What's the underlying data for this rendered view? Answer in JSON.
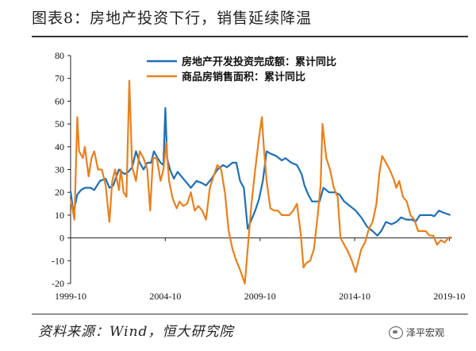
{
  "title": "图表8：房地产投资下行，销售延续降温",
  "source": "资料来源：Wind，恒大研究院",
  "watermark": "泽平宏观",
  "watermark_icon": "wechat-icon",
  "chart_data": {
    "type": "line",
    "ylim": [
      -20,
      80
    ],
    "yticks": [
      "80",
      "70",
      "60",
      "50",
      "40",
      "30",
      "20",
      "10",
      "0",
      "-10",
      "-20"
    ],
    "xlim": [
      1999.75,
      2019.9
    ],
    "xticks": [
      {
        "x": 1999.75,
        "label": "1999-10"
      },
      {
        "x": 2004.75,
        "label": "2004-10"
      },
      {
        "x": 2009.75,
        "label": "2009-10"
      },
      {
        "x": 2014.75,
        "label": "2014-10"
      },
      {
        "x": 2019.75,
        "label": "2019-10"
      }
    ],
    "legend_position": "top",
    "grid": false,
    "series": [
      {
        "name": "房地产开发投资完成额：累计同比",
        "color": "#1f6fb4",
        "points": [
          [
            1999.75,
            20.5
          ],
          [
            1999.9,
            11
          ],
          [
            2000.1,
            19
          ],
          [
            2000.3,
            21
          ],
          [
            2000.5,
            22
          ],
          [
            2000.8,
            22
          ],
          [
            2001.0,
            21
          ],
          [
            2001.3,
            25
          ],
          [
            2001.6,
            26
          ],
          [
            2001.8,
            22
          ],
          [
            2002.0,
            23
          ],
          [
            2002.3,
            30
          ],
          [
            2002.6,
            28
          ],
          [
            2002.8,
            29
          ],
          [
            2003.0,
            31
          ],
          [
            2003.2,
            38
          ],
          [
            2003.4,
            33
          ],
          [
            2003.6,
            30
          ],
          [
            2003.8,
            33
          ],
          [
            2004.0,
            33
          ],
          [
            2004.15,
            38
          ],
          [
            2004.35,
            35
          ],
          [
            2004.5,
            33
          ],
          [
            2004.65,
            32
          ],
          [
            2004.75,
            57
          ],
          [
            2004.85,
            35
          ],
          [
            2005.0,
            30
          ],
          [
            2005.2,
            26
          ],
          [
            2005.4,
            29
          ],
          [
            2005.6,
            27
          ],
          [
            2005.9,
            24
          ],
          [
            2006.1,
            22
          ],
          [
            2006.4,
            25
          ],
          [
            2006.7,
            24
          ],
          [
            2006.9,
            23
          ],
          [
            2007.2,
            26
          ],
          [
            2007.5,
            30
          ],
          [
            2007.8,
            32
          ],
          [
            2008.0,
            31
          ],
          [
            2008.3,
            33
          ],
          [
            2008.5,
            33
          ],
          [
            2008.7,
            25
          ],
          [
            2008.9,
            22
          ],
          [
            2009.1,
            4
          ],
          [
            2009.3,
            8
          ],
          [
            2009.5,
            12
          ],
          [
            2009.7,
            17
          ],
          [
            2009.9,
            25
          ],
          [
            2010.1,
            38
          ],
          [
            2010.3,
            37
          ],
          [
            2010.6,
            36
          ],
          [
            2010.9,
            34
          ],
          [
            2011.1,
            35
          ],
          [
            2011.4,
            33
          ],
          [
            2011.7,
            32
          ],
          [
            2011.95,
            28
          ],
          [
            2012.1,
            23
          ],
          [
            2012.3,
            19
          ],
          [
            2012.5,
            16
          ],
          [
            2012.7,
            16
          ],
          [
            2012.9,
            16
          ],
          [
            2013.1,
            22
          ],
          [
            2013.4,
            20
          ],
          [
            2013.7,
            20
          ],
          [
            2013.95,
            19
          ],
          [
            2014.2,
            16
          ],
          [
            2014.5,
            14
          ],
          [
            2014.8,
            12
          ],
          [
            2014.95,
            10.5
          ],
          [
            2015.1,
            9
          ],
          [
            2015.4,
            5
          ],
          [
            2015.7,
            3
          ],
          [
            2015.95,
            1
          ],
          [
            2016.15,
            3
          ],
          [
            2016.4,
            7
          ],
          [
            2016.7,
            6
          ],
          [
            2016.95,
            7
          ],
          [
            2017.2,
            9
          ],
          [
            2017.5,
            8
          ],
          [
            2017.8,
            8
          ],
          [
            2017.95,
            7
          ],
          [
            2018.2,
            10
          ],
          [
            2018.5,
            10
          ],
          [
            2018.8,
            10
          ],
          [
            2018.95,
            9.5
          ],
          [
            2019.2,
            12
          ],
          [
            2019.45,
            11
          ],
          [
            2019.65,
            10.5
          ],
          [
            2019.8,
            10
          ]
        ]
      },
      {
        "name": "商品房销售面积：累计同比",
        "color": "#e8801e",
        "points": [
          [
            1999.75,
            17
          ],
          [
            1999.95,
            8
          ],
          [
            2000.1,
            53
          ],
          [
            2000.2,
            38
          ],
          [
            2000.4,
            35
          ],
          [
            2000.5,
            40
          ],
          [
            2000.7,
            27
          ],
          [
            2000.85,
            35
          ],
          [
            2001.0,
            38
          ],
          [
            2001.2,
            30
          ],
          [
            2001.4,
            30
          ],
          [
            2001.6,
            23
          ],
          [
            2001.8,
            7
          ],
          [
            2001.95,
            25
          ],
          [
            2002.1,
            30
          ],
          [
            2002.3,
            21
          ],
          [
            2002.4,
            30
          ],
          [
            2002.55,
            20
          ],
          [
            2002.7,
            18
          ],
          [
            2002.85,
            69
          ],
          [
            2003.0,
            31
          ],
          [
            2003.2,
            25
          ],
          [
            2003.4,
            38
          ],
          [
            2003.6,
            35
          ],
          [
            2003.8,
            30
          ],
          [
            2003.95,
            12
          ],
          [
            2004.1,
            35
          ],
          [
            2004.3,
            35
          ],
          [
            2004.5,
            25
          ],
          [
            2004.65,
            30
          ],
          [
            2004.8,
            42
          ],
          [
            2004.95,
            25
          ],
          [
            2005.15,
            17
          ],
          [
            2005.35,
            13
          ],
          [
            2005.5,
            16
          ],
          [
            2005.7,
            14
          ],
          [
            2005.9,
            15
          ],
          [
            2006.1,
            20
          ],
          [
            2006.3,
            12
          ],
          [
            2006.5,
            14
          ],
          [
            2006.7,
            12
          ],
          [
            2006.9,
            8
          ],
          [
            2007.1,
            22
          ],
          [
            2007.3,
            27
          ],
          [
            2007.5,
            32
          ],
          [
            2007.7,
            30
          ],
          [
            2007.9,
            20
          ],
          [
            2008.1,
            3
          ],
          [
            2008.3,
            -5
          ],
          [
            2008.5,
            -10
          ],
          [
            2008.7,
            -14
          ],
          [
            2008.95,
            -20
          ],
          [
            2009.1,
            -5
          ],
          [
            2009.3,
            15
          ],
          [
            2009.5,
            30
          ],
          [
            2009.7,
            44
          ],
          [
            2009.85,
            53
          ],
          [
            2009.95,
            40
          ],
          [
            2010.1,
            25
          ],
          [
            2010.3,
            13
          ],
          [
            2010.5,
            12
          ],
          [
            2010.7,
            12
          ],
          [
            2010.9,
            10
          ],
          [
            2011.1,
            10
          ],
          [
            2011.3,
            10
          ],
          [
            2011.5,
            12
          ],
          [
            2011.7,
            15
          ],
          [
            2011.9,
            2
          ],
          [
            2012.05,
            -13
          ],
          [
            2012.2,
            -11
          ],
          [
            2012.4,
            -10
          ],
          [
            2012.6,
            -5
          ],
          [
            2012.8,
            10
          ],
          [
            2012.95,
            23
          ],
          [
            2013.05,
            50
          ],
          [
            2013.25,
            35
          ],
          [
            2013.45,
            30
          ],
          [
            2013.65,
            22
          ],
          [
            2013.85,
            18
          ],
          [
            2014.0,
            0
          ],
          [
            2014.2,
            -3
          ],
          [
            2014.4,
            -6
          ],
          [
            2014.6,
            -10
          ],
          [
            2014.8,
            -15
          ],
          [
            2014.95,
            -10
          ],
          [
            2015.1,
            -5
          ],
          [
            2015.3,
            -2
          ],
          [
            2015.5,
            4
          ],
          [
            2015.7,
            7
          ],
          [
            2015.9,
            15
          ],
          [
            2016.05,
            28
          ],
          [
            2016.2,
            36
          ],
          [
            2016.4,
            33
          ],
          [
            2016.6,
            30
          ],
          [
            2016.8,
            26
          ],
          [
            2016.95,
            22
          ],
          [
            2017.1,
            25
          ],
          [
            2017.3,
            18
          ],
          [
            2017.5,
            16
          ],
          [
            2017.7,
            10
          ],
          [
            2017.9,
            8
          ],
          [
            2018.1,
            3
          ],
          [
            2018.3,
            3
          ],
          [
            2018.5,
            3
          ],
          [
            2018.7,
            1
          ],
          [
            2018.9,
            1
          ],
          [
            2019.1,
            -3
          ],
          [
            2019.3,
            -1
          ],
          [
            2019.5,
            -2
          ],
          [
            2019.7,
            0
          ],
          [
            2019.8,
            0.5
          ]
        ]
      }
    ]
  }
}
